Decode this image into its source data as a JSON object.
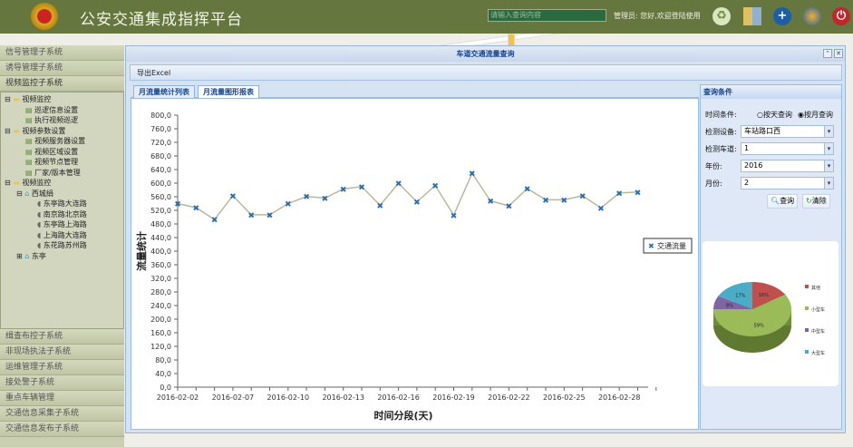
{
  "header": {
    "title": "公安交通集成指挥平台",
    "search_placeholder": "请输入查询内容",
    "welcome": "管理员: 您好,欢迎登陆使用",
    "icons": [
      "recycle-icon",
      "grid-apps-icon",
      "add-icon",
      "globe-icon",
      "power-icon"
    ]
  },
  "sidebar": {
    "top_items": [
      "信号管理子系统",
      "诱导管理子系统",
      "视频监控子系统"
    ],
    "tree": [
      {
        "label": "视频监控",
        "level": 0,
        "type": "folder",
        "exp": "⊟"
      },
      {
        "label": "巡逻信息设置",
        "level": 1,
        "type": "doc"
      },
      {
        "label": "执行视频巡逻",
        "level": 1,
        "type": "doc"
      },
      {
        "label": "视频参数设置",
        "level": 0,
        "type": "folder",
        "exp": "⊟"
      },
      {
        "label": "视频服务器设置",
        "level": 1,
        "type": "doc"
      },
      {
        "label": "视频区域设置",
        "level": 1,
        "type": "doc"
      },
      {
        "label": "视频节点管理",
        "level": 1,
        "type": "doc"
      },
      {
        "label": "厂家/版本管理",
        "level": 1,
        "type": "doc"
      },
      {
        "label": "视频监控",
        "level": 0,
        "type": "folder",
        "exp": "⊟"
      },
      {
        "label": "西城绢",
        "level": 1,
        "type": "home",
        "exp": "⊟"
      },
      {
        "label": "东亭路大连路",
        "level": 2,
        "type": "camera"
      },
      {
        "label": "南京路北京路",
        "level": 2,
        "type": "camera"
      },
      {
        "label": "东亭路上海路",
        "level": 2,
        "type": "camera"
      },
      {
        "label": "上海路大连路",
        "level": 2,
        "type": "camera"
      },
      {
        "label": "东花路苏州路",
        "level": 2,
        "type": "camera"
      },
      {
        "label": "东亭",
        "level": 1,
        "type": "home",
        "exp": "⊞"
      }
    ],
    "bottom_items": [
      "缉查布控子系统",
      "非现场执法子系统",
      "运维管理子系统",
      "接处警子系统",
      "重点车辆管理",
      "交通信息采集子系统",
      "交通信息发布子系统"
    ]
  },
  "window": {
    "title": "车道交通流量查询",
    "toolbar": {
      "export": "导出Excel"
    },
    "tabs": [
      {
        "label": "月流量统计列表",
        "active": false
      },
      {
        "label": "月流量图形报表",
        "active": true
      }
    ],
    "query": {
      "title": "查询条件",
      "time_label": "时间条件:",
      "radio_day": "按天查询",
      "radio_month": "按月查询",
      "selected": "按月查询",
      "device_label": "检测设备:",
      "device": "车站路口西",
      "lane_label": "检测车道:",
      "lane": "1",
      "year_label": "年份:",
      "year": "2016",
      "month_label": "月份:",
      "month": "2",
      "search": "查询",
      "clear": "清除"
    }
  },
  "chart_data": [
    {
      "type": "line",
      "xlabel": "时间分段(天)",
      "ylabel": "流量统计",
      "ylim": [
        0,
        800
      ],
      "ytick_step": 40,
      "grid": false,
      "legend": "right",
      "categories": [
        "2016-02-02",
        "2016-02-05",
        "2016-02-06",
        "2016-02-07",
        "2016-02-08",
        "2016-02-09",
        "2016-02-10",
        "2016-02-11",
        "2016-02-12",
        "2016-02-13",
        "2016-02-14",
        "2016-02-15",
        "2016-02-16",
        "2016-02-17",
        "2016-02-18",
        "2016-02-19",
        "2016-02-20",
        "2016-02-21",
        "2016-02-22",
        "2016-02-23",
        "2016-02-24",
        "2016-02-25",
        "2016-02-26",
        "2016-02-27",
        "2016-02-28",
        "2016-02-29"
      ],
      "xtick_labels": [
        "2016-02-02",
        "2016-02-07",
        "2016-02-10",
        "2016-02-13",
        "2016-02-16",
        "2016-02-19",
        "2016-02-22",
        "2016-02-25",
        "2016-02-28"
      ],
      "series": [
        {
          "name": "交通流量",
          "color": "#b7b99a",
          "marker_color": "#2b6cb0",
          "values": [
            540,
            528,
            493,
            563,
            507,
            507,
            540,
            561,
            556,
            583,
            590,
            535,
            600,
            545,
            593,
            506,
            629,
            548,
            533,
            584,
            551,
            551,
            563,
            527,
            571,
            574
          ]
        }
      ]
    },
    {
      "type": "pie",
      "labels": [
        "其他",
        "小型车",
        "中型车",
        "大型车"
      ],
      "values": [
        16,
        59,
        8,
        17
      ],
      "colors": [
        "#c0504d",
        "#9bbb59",
        "#8064a2",
        "#4bacc6"
      ]
    }
  ]
}
